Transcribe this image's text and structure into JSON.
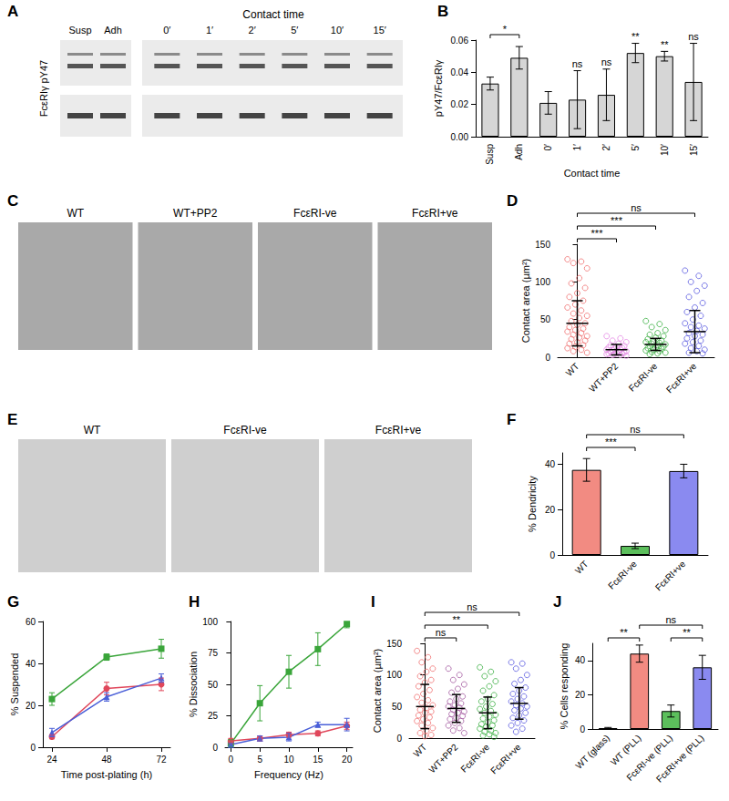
{
  "images": [
    {
      "panel": "A",
      "title": "Contact time",
      "lanes": [
        "Susp",
        "Adh",
        "0′",
        "1′",
        "2′",
        "5′",
        "10′",
        "15′"
      ],
      "row_label": "FcεRIγ pY47"
    },
    {
      "panel": "C",
      "labels": [
        "WT",
        "WT+PP2",
        "FcεRI-ve",
        "FcεRI+ve"
      ]
    },
    {
      "panel": "E",
      "labels": [
        "WT",
        "FcεRI-ve",
        "FcεRI+ve"
      ]
    }
  ],
  "chart_data": [
    {
      "panel": "B",
      "type": "bar",
      "y_label": "pY47/FcεRIγ",
      "x_label": "Contact time",
      "categories": [
        "Susp",
        "Adh",
        "0′",
        "1′",
        "2′",
        "5′",
        "10′",
        "15′"
      ],
      "values": [
        0.033,
        0.049,
        0.021,
        0.023,
        0.026,
        0.052,
        0.05,
        0.034
      ],
      "errors": [
        0.004,
        0.007,
        0.007,
        0.018,
        0.016,
        0.006,
        0.003,
        0.024
      ],
      "color": "#d6d6d6",
      "ylim": [
        0,
        0.06
      ],
      "yticks": [
        {
          "value": 0,
          "label": "0.00"
        },
        0.02,
        0.04,
        0.06
      ],
      "grid": false,
      "significance": [
        {
          "from": "Susp",
          "to": "Adh",
          "label": "*"
        },
        {
          "at": "1′",
          "label": "ns"
        },
        {
          "at": "2′",
          "label": "ns"
        },
        {
          "at": "5′",
          "label": "**"
        },
        {
          "at": "10′",
          "label": "**"
        },
        {
          "at": "15′",
          "label": "ns"
        }
      ]
    },
    {
      "panel": "D",
      "type": "dot",
      "y_label": "Contact area (µm²)",
      "categories": [
        "WT",
        "WT+PP2",
        "FcεRI-ve",
        "FcεRI+ve"
      ],
      "colors": [
        "#f07070",
        "#e58ae5",
        "#3cb043",
        "#5a5ae0"
      ],
      "points": [
        [
          130,
          127,
          125,
          118,
          105,
          98,
          92,
          85,
          80,
          75,
          70,
          66,
          62,
          58,
          55,
          52,
          48,
          45,
          43,
          40,
          38,
          36,
          34,
          32,
          30,
          28,
          26,
          24,
          22,
          20,
          18,
          16,
          14,
          12,
          10,
          8,
          6
        ],
        [
          28,
          25,
          22,
          20,
          18,
          16,
          15,
          14,
          13,
          12,
          11,
          10,
          10,
          9,
          8,
          8,
          7,
          6,
          6,
          5,
          5,
          4,
          4,
          3,
          3,
          2
        ],
        [
          48,
          44,
          40,
          36,
          32,
          30,
          28,
          26,
          24,
          22,
          21,
          20,
          19,
          18,
          17,
          16,
          15,
          14,
          13,
          12,
          11,
          10,
          9,
          8,
          7,
          6,
          5,
          4
        ],
        [
          115,
          108,
          100,
          95,
          88,
          80,
          72,
          66,
          60,
          55,
          50,
          45,
          42,
          40,
          38,
          35,
          32,
          30,
          28,
          25,
          22,
          20,
          18,
          15,
          12,
          10,
          8,
          6,
          5
        ]
      ],
      "means": [
        45,
        10,
        17,
        34
      ],
      "sds": [
        30,
        7,
        8,
        28
      ],
      "ylim": [
        0,
        150
      ],
      "yticks": [
        0,
        50,
        100,
        150
      ],
      "grid": false,
      "significance": [
        {
          "from": "WT",
          "to": "WT+PP2",
          "label": "***"
        },
        {
          "from": "WT",
          "to": "FcεRI-ve",
          "label": "***"
        },
        {
          "from": "WT",
          "to": "FcεRI+ve",
          "label": "ns"
        }
      ]
    },
    {
      "panel": "F",
      "type": "bar",
      "y_label": "% Dendricity",
      "categories": [
        "WT",
        "FcεRI-ve",
        "FcεRI+ve"
      ],
      "values": [
        37.5,
        4,
        37
      ],
      "errors": [
        5,
        1.2,
        3
      ],
      "colors": [
        "#f28b82",
        "#5cbf5c",
        "#8a8af0"
      ],
      "ylim": [
        0,
        45
      ],
      "yticks": [
        0,
        20,
        40
      ],
      "grid": false,
      "significance": [
        {
          "from": "WT",
          "to": "FcεRI-ve",
          "label": "***"
        },
        {
          "from": "WT",
          "to": "FcεRI+ve",
          "label": "ns"
        }
      ]
    },
    {
      "panel": "G",
      "type": "line",
      "x_label": "Time post-plating (h)",
      "y_label": "% Suspended",
      "x": [
        24,
        48,
        72
      ],
      "xlim": [
        20,
        76
      ],
      "xticks": [
        24,
        48,
        72
      ],
      "ylim": [
        0,
        60
      ],
      "yticks": [
        0,
        20,
        40,
        60
      ],
      "grid": false,
      "series": [
        {
          "color": "#3aa53a",
          "marker": "rect",
          "values": [
            23,
            43,
            47
          ],
          "errors": [
            3,
            1.5,
            4.5
          ]
        },
        {
          "color": "#e0475b",
          "marker": "circle",
          "values": [
            5,
            28,
            30
          ],
          "errors": [
            1,
            3,
            3
          ]
        },
        {
          "color": "#4a5fd8",
          "marker": "triangle",
          "values": [
            7,
            24,
            33
          ],
          "errors": [
            2,
            2,
            2
          ]
        }
      ]
    },
    {
      "panel": "H",
      "type": "line",
      "x_label": "Frequency (Hz)",
      "y_label": "% Dissociation",
      "x": [
        0,
        5,
        10,
        15,
        20
      ],
      "xlim": [
        -1,
        21
      ],
      "xticks": [
        0,
        5,
        10,
        15,
        20
      ],
      "ylim": [
        0,
        100
      ],
      "yticks": [
        0,
        25,
        50,
        75,
        100
      ],
      "grid": false,
      "series": [
        {
          "color": "#3aa53a",
          "marker": "rect",
          "values": [
            3,
            35,
            60,
            78,
            98
          ],
          "errors": [
            3,
            14,
            13,
            13,
            3
          ]
        },
        {
          "color": "#e0475b",
          "marker": "circle",
          "values": [
            5,
            7,
            10,
            11,
            17
          ],
          "errors": [
            2,
            2,
            2,
            2,
            3
          ]
        },
        {
          "color": "#4a5fd8",
          "marker": "triangle",
          "values": [
            2,
            7,
            8,
            18,
            18
          ],
          "errors": [
            1,
            2,
            3,
            2,
            5
          ]
        }
      ]
    },
    {
      "panel": "I",
      "type": "dot",
      "y_label": "Contact area (µm²)",
      "categories": [
        "WT",
        "WT+PP2",
        "FcεRI-ve",
        "FcεRI+ve"
      ],
      "colors": [
        "#f07070",
        "#a45aa0",
        "#3cb043",
        "#5a5ae0"
      ],
      "points": [
        [
          138,
          128,
          120,
          110,
          105,
          98,
          92,
          88,
          82,
          76,
          70,
          65,
          60,
          56,
          52,
          48,
          45,
          42,
          40,
          36,
          33,
          30,
          27,
          24,
          20,
          16,
          12,
          8,
          5,
          3
        ],
        [
          110,
          100,
          92,
          85,
          78,
          72,
          66,
          62,
          58,
          55,
          52,
          50,
          48,
          45,
          42,
          40,
          38,
          35,
          32,
          30,
          27,
          24,
          20,
          16,
          12,
          8
        ],
        [
          112,
          105,
          98,
          90,
          82,
          75,
          68,
          62,
          58,
          54,
          50,
          46,
          43,
          40,
          37,
          34,
          31,
          28,
          25,
          22,
          20,
          18,
          15,
          12,
          10,
          8,
          6,
          4,
          2
        ],
        [
          120,
          118,
          110,
          100,
          92,
          86,
          80,
          75,
          70,
          66,
          62,
          58,
          55,
          52,
          50,
          47,
          44,
          40,
          36,
          32,
          28,
          24,
          20,
          15,
          10
        ]
      ],
      "means": [
        50,
        47,
        40,
        55
      ],
      "sds": [
        35,
        22,
        25,
        25
      ],
      "ylim": [
        0,
        150
      ],
      "yticks": [
        0,
        50,
        100,
        150
      ],
      "grid": false,
      "significance": [
        {
          "from": "WT",
          "to": "WT+PP2",
          "label": "ns"
        },
        {
          "from": "WT",
          "to": "FcεRI-ve",
          "label": "**"
        },
        {
          "from": "WT",
          "to": "FcεRI+ve",
          "label": "ns"
        }
      ]
    },
    {
      "panel": "J",
      "type": "bar",
      "y_label": "% Cells responding",
      "categories": [
        "WT (glass)",
        "WT (PLL)",
        "FcεRI-ve (PLL)",
        "FcεRI+ve (PLL)"
      ],
      "values": [
        0.5,
        44,
        10.5,
        36
      ],
      "errors": [
        0.4,
        5,
        3.5,
        7
      ],
      "colors": [
        "#f28b82",
        "#f28b82",
        "#5cbf5c",
        "#8a8af0"
      ],
      "ylim": [
        0,
        50
      ],
      "yticks": [
        0,
        20,
        40
      ],
      "grid": false,
      "significance": [
        {
          "from": "WT (glass)",
          "to": "WT (PLL)",
          "label": "**"
        },
        {
          "from": "WT (PLL)",
          "to": "FcεRI+ve (PLL)",
          "label": "ns"
        },
        {
          "from": "FcεRI-ve (PLL)",
          "to": "FcεRI+ve (PLL)",
          "label": "**"
        }
      ]
    }
  ]
}
